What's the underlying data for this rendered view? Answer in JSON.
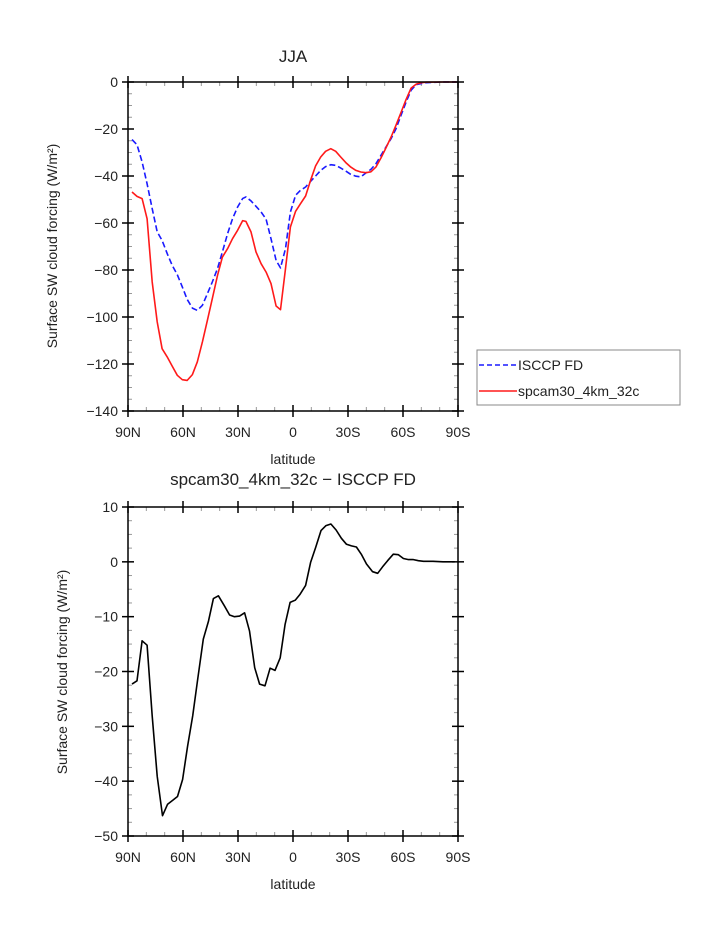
{
  "chart_data": [
    {
      "type": "line",
      "title": "JJA",
      "xlabel": "latitude",
      "ylabel": "Surface SW cloud forcing (W/m²)",
      "xlim": [
        90,
        -90
      ],
      "ylim": [
        -140,
        0
      ],
      "xticks": [
        90,
        60,
        30,
        0,
        -30,
        -60,
        -90
      ],
      "xtick_labels": [
        "90N",
        "60N",
        "30N",
        "0",
        "30S",
        "60S",
        "90S"
      ],
      "yticks": [
        0,
        -20,
        -40,
        -60,
        -80,
        -100,
        -120,
        -140
      ],
      "ytick_labels": [
        "0",
        "−20",
        "−40",
        "−60",
        "−80",
        "−100",
        "−120",
        "−140"
      ],
      "legend_position": "right",
      "lat": [
        87.8,
        85.1,
        82.3,
        79.6,
        76.8,
        74.1,
        71.4,
        68.6,
        65.9,
        63.1,
        60.4,
        57.7,
        54.9,
        52.2,
        49.4,
        46.7,
        44.0,
        41.2,
        38.5,
        35.7,
        33.0,
        30.2,
        27.5,
        25.7,
        22.9,
        20.2,
        17.4,
        14.7,
        12.0,
        9.2,
        6.8,
        4.1,
        1.4,
        -1.4,
        -4.1,
        -6.9,
        -9.6,
        -12.3,
        -15.1,
        -17.8,
        -20.6,
        -23.3,
        -26.0,
        -28.8,
        -31.5,
        -34.3,
        -37.0,
        -39.8,
        -42.5,
        -45.2,
        -48.0,
        -50.7,
        -53.5,
        -56.2,
        -58.9,
        -61.7,
        -64.4,
        -67.2,
        -69.9,
        -72.6,
        -81.8,
        -89.1
      ],
      "series": [
        {
          "name": "ISCCP FD",
          "color": "#1a1aff",
          "style": "dashed",
          "values": [
            -24.5,
            -26.7,
            -34.0,
            -43.3,
            -53.9,
            -63.8,
            -67.4,
            -73.0,
            -78.0,
            -82.0,
            -87.2,
            -92.5,
            -96.2,
            -97.2,
            -95.0,
            -90.1,
            -85.1,
            -79.4,
            -72.3,
            -64.5,
            -58.2,
            -53.2,
            -49.6,
            -48.9,
            -50.6,
            -52.9,
            -55.3,
            -58.4,
            -66.7,
            -75.9,
            -79.1,
            -70.9,
            -55.3,
            -48.2,
            -46.1,
            -44.7,
            -42.3,
            -40.0,
            -37.6,
            -36.0,
            -35.2,
            -35.5,
            -36.6,
            -37.9,
            -39.3,
            -40.1,
            -40.4,
            -38.7,
            -37.2,
            -34.8,
            -31.2,
            -27.7,
            -24.1,
            -19.9,
            -14.2,
            -8.5,
            -3.5,
            -1.1,
            -0.7,
            -0.3,
            0,
            0
          ]
        },
        {
          "name": "spcam30_4km_32c",
          "color": "#ff1a1a",
          "style": "solid",
          "values": [
            -46.8,
            -48.7,
            -49.6,
            -58.2,
            -85.1,
            -102.1,
            -113.5,
            -117.0,
            -120.9,
            -124.8,
            -126.7,
            -127.0,
            -124.5,
            -119.1,
            -110.6,
            -101.4,
            -92.2,
            -82.3,
            -74.5,
            -70.9,
            -66.7,
            -63.1,
            -59.0,
            -59.3,
            -63.8,
            -72.3,
            -77.3,
            -80.9,
            -85.8,
            -95.3,
            -96.9,
            -79.4,
            -61.7,
            -55.0,
            -51.8,
            -48.5,
            -41.8,
            -35.7,
            -31.9,
            -29.5,
            -28.4,
            -29.5,
            -31.9,
            -34.3,
            -36.2,
            -37.6,
            -38.3,
            -38.6,
            -38.2,
            -36.2,
            -32.3,
            -28.1,
            -23.4,
            -18.4,
            -13.0,
            -7.4,
            -2.6,
            -0.9,
            -0.3,
            -0.1,
            0,
            0
          ]
        }
      ]
    },
    {
      "type": "line",
      "title": "spcam30_4km_32c − ISCCP FD",
      "xlabel": "latitude",
      "ylabel": "Surface SW cloud forcing (W/m²)",
      "xlim": [
        90,
        -90
      ],
      "ylim": [
        -50,
        10
      ],
      "xticks": [
        90,
        60,
        30,
        0,
        -30,
        -60,
        -90
      ],
      "xtick_labels": [
        "90N",
        "60N",
        "30N",
        "0",
        "30S",
        "60S",
        "90S"
      ],
      "yticks": [
        10,
        0,
        -10,
        -20,
        -30,
        -40,
        -50
      ],
      "ytick_labels": [
        "10",
        "0",
        "−10",
        "−20",
        "−30",
        "−40",
        "−50"
      ],
      "lat": [
        87.8,
        85.1,
        82.3,
        79.6,
        76.8,
        74.1,
        71.2,
        68.4,
        65.7,
        63.0,
        60.2,
        57.5,
        54.7,
        52.0,
        48.9,
        46.1,
        43.4,
        40.7,
        37.5,
        34.6,
        31.9,
        29.1,
        26.4,
        23.7,
        20.9,
        18.2,
        15.3,
        12.5,
        9.8,
        7.0,
        4.3,
        1.6,
        -1.2,
        -3.9,
        -6.9,
        -9.6,
        -12.3,
        -15.3,
        -18.0,
        -20.7,
        -23.5,
        -26.4,
        -29.2,
        -31.9,
        -34.6,
        -37.4,
        -40.1,
        -43.4,
        -46.2,
        -48.9,
        -51.6,
        -54.7,
        -57.5,
        -60.2,
        -63.0,
        -65.7,
        -68.4,
        -71.2,
        -76.3,
        -81.8,
        -88.2
      ],
      "series": [
        {
          "name": "spcam30_4km_32c − ISCCP FD",
          "color": "#000000",
          "style": "solid",
          "values": [
            -22.3,
            -21.7,
            -14.4,
            -15.2,
            -28.1,
            -39.1,
            -46.3,
            -44.2,
            -43.5,
            -42.8,
            -39.7,
            -33.6,
            -28.1,
            -21.4,
            -14.1,
            -10.8,
            -6.7,
            -6.2,
            -8.0,
            -9.7,
            -10.0,
            -9.9,
            -9.3,
            -12.6,
            -19.3,
            -22.3,
            -22.6,
            -19.4,
            -19.8,
            -17.5,
            -11.4,
            -7.4,
            -7.0,
            -5.9,
            -4.3,
            -0.1,
            2.6,
            5.7,
            6.6,
            6.9,
            5.8,
            4.3,
            3.2,
            2.9,
            2.7,
            1.3,
            -0.4,
            -1.8,
            -2.1,
            -0.9,
            0.2,
            1.4,
            1.3,
            0.6,
            0.4,
            0.4,
            0.2,
            0.1,
            0.1,
            0,
            0
          ]
        }
      ]
    }
  ]
}
